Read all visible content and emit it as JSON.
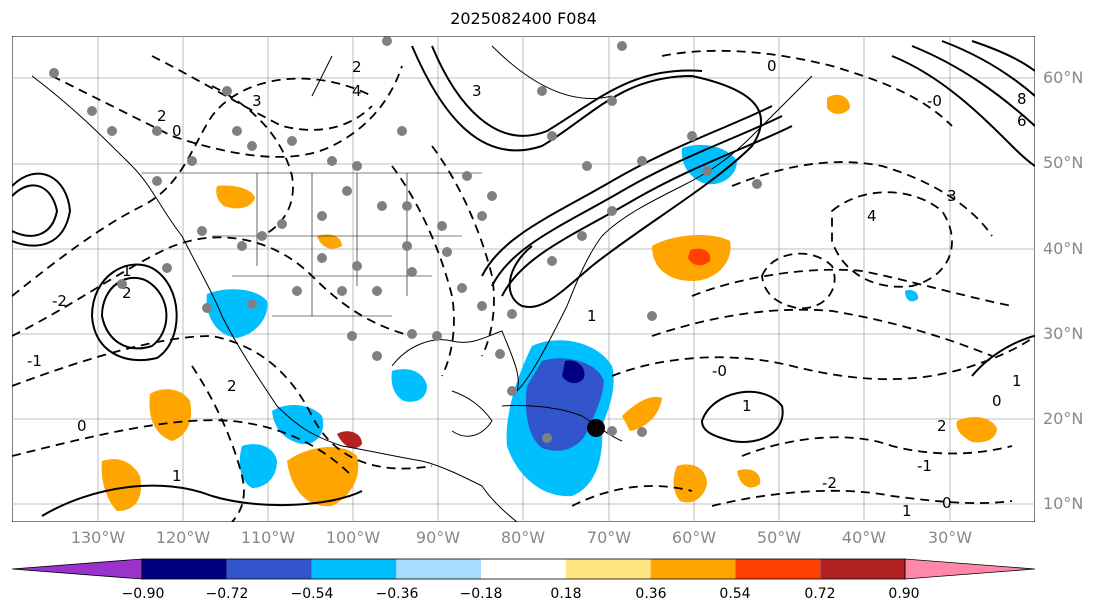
{
  "title": "2025082400 F084",
  "lat_labels": [
    "60°N",
    "50°N",
    "40°N",
    "30°N",
    "20°N",
    "10°N"
  ],
  "lon_labels": [
    "130°W",
    "120°W",
    "110°W",
    "100°W",
    "90°W",
    "80°W",
    "70°W",
    "60°W",
    "50°W",
    "40°W",
    "30°W"
  ],
  "colorbar": {
    "ticks": [
      "−0.90",
      "−0.72",
      "−0.54",
      "−0.36",
      "−0.18",
      "0.18",
      "0.36",
      "0.54",
      "0.72",
      "0.90"
    ],
    "colors": [
      "#9933cc",
      "#000080",
      "#3355cc",
      "#00bfff",
      "#aadcff",
      "#ffffff",
      "#ffe680",
      "#ffa500",
      "#ff4000",
      "#b22222",
      "#ff88aa"
    ]
  },
  "contour_labels": [
    "2",
    "4",
    "3",
    "2",
    "0",
    "1",
    "3",
    "2",
    "1",
    "0",
    "-2",
    "-1",
    "-0",
    "1",
    "2",
    "0",
    "-1",
    "-2",
    "3",
    "4",
    "6",
    "8",
    "-0",
    "1",
    "0",
    "1",
    "2",
    "1",
    "0"
  ],
  "palette": {
    "water": "#ffffff",
    "line": "#000000",
    "marker": "#808080"
  }
}
